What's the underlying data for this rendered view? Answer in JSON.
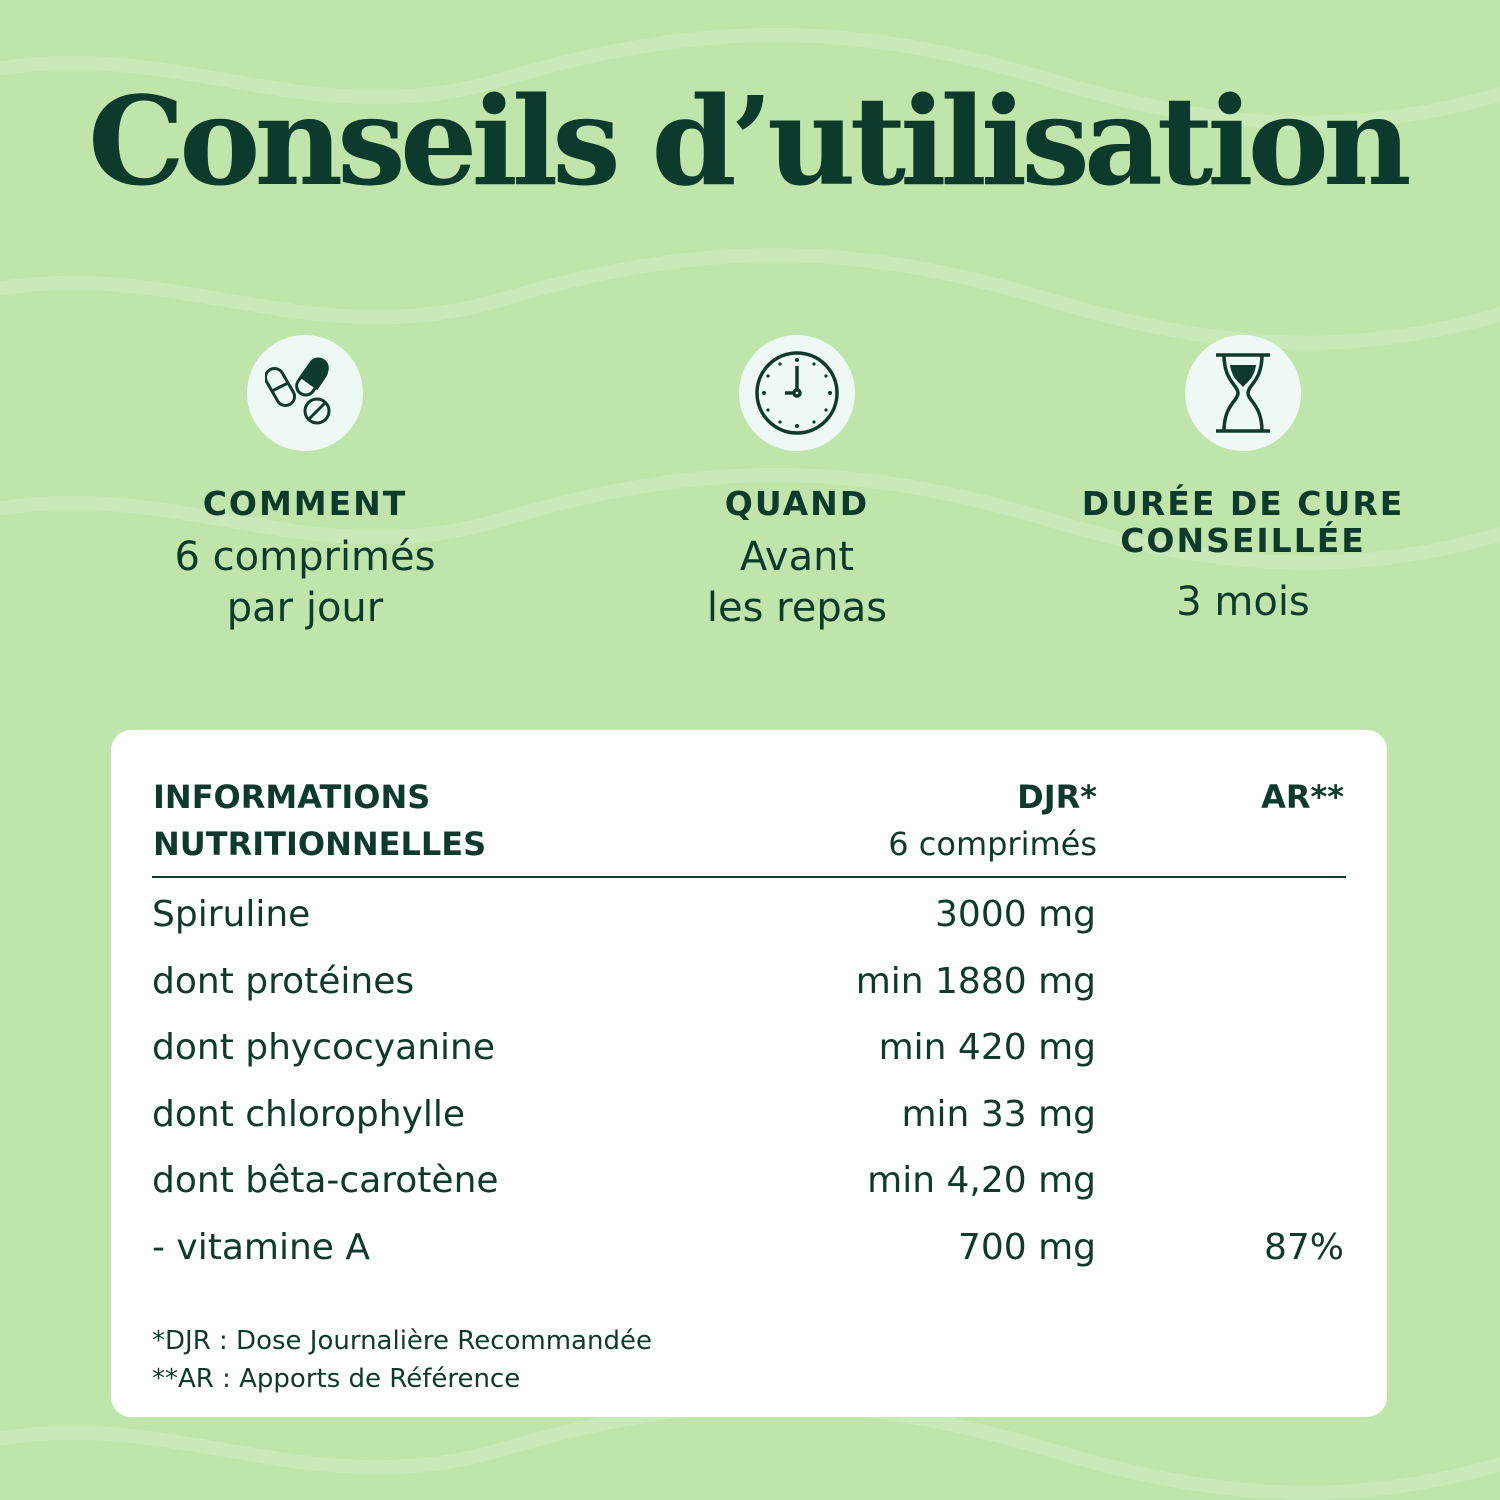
{
  "title": "Conseils d’utilisation",
  "colors": {
    "background": "#bfe5ab",
    "text": "#0c3a2c",
    "card": "#ffffff",
    "icon_circle": "#eef9f6"
  },
  "usage": [
    {
      "icon": "pills-icon",
      "label": "COMMENT",
      "value_lines": [
        "6 comprimés",
        "par jour"
      ]
    },
    {
      "icon": "clock-icon",
      "label": "QUAND",
      "value_lines": [
        "Avant",
        "les repas"
      ]
    },
    {
      "icon": "hourglass-icon",
      "label_lines": [
        "DURÉE DE CURE",
        "CONSEILLÉE"
      ],
      "value_lines": [
        "3 mois"
      ]
    }
  ],
  "table": {
    "header": {
      "col1": [
        "INFORMATIONS",
        "NUTRITIONNELLES"
      ],
      "col2": "DJR*",
      "col2_sub": "6 comprimés",
      "col3": "AR**"
    },
    "rows": [
      {
        "name": "Spiruline",
        "djr": "3000 mg",
        "ar": ""
      },
      {
        "name": "dont protéines",
        "djr": "min 1880 mg",
        "ar": ""
      },
      {
        "name": "dont phycocyanine",
        "djr": "min 420 mg",
        "ar": ""
      },
      {
        "name": "dont chlorophylle",
        "djr": "min 33 mg",
        "ar": ""
      },
      {
        "name": "dont bêta-carotène",
        "djr": "min 4,20 mg",
        "ar": ""
      },
      {
        "name": "- vitamine A",
        "djr": "700 mg",
        "ar": "87%"
      }
    ],
    "footnotes": [
      "*DJR : Dose Journalière Recommandée",
      "**AR : Apports de Référence"
    ]
  }
}
